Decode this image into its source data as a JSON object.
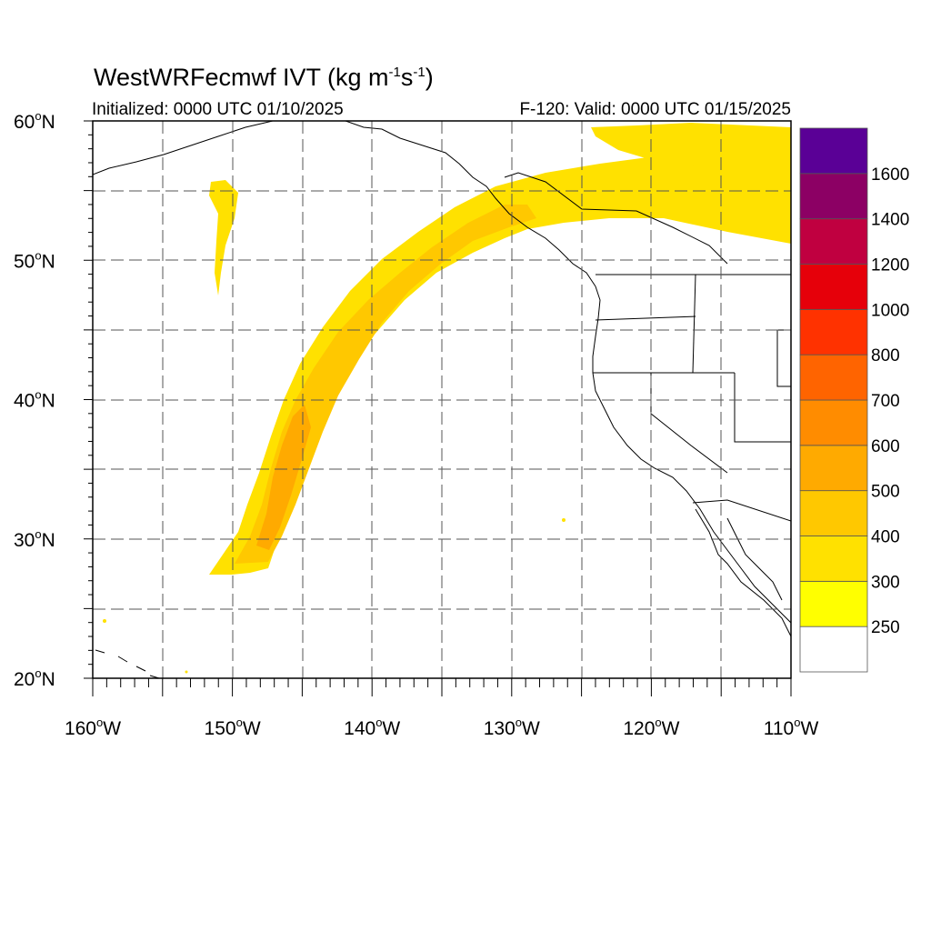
{
  "title": {
    "main": "WestWRFecmwf IVT (kg m",
    "sup1": "-1",
    "mid": "s",
    "sup2": "-1",
    "end": ")"
  },
  "subtitle_left": "Initialized: 0000 UTC 01/10/2025",
  "subtitle_right": "F-120: Valid: 0000 UTC 01/15/2025",
  "lat_labels": [
    "20",
    "30",
    "40",
    "50",
    "60"
  ],
  "lat_suffix": "N",
  "lon_labels": [
    "160",
    "150",
    "140",
    "130",
    "120",
    "110"
  ],
  "lon_suffix": "W",
  "colorbar": {
    "labels": [
      "250",
      "300",
      "400",
      "500",
      "600",
      "700",
      "800",
      "1000",
      "1200",
      "1400",
      "1600"
    ],
    "colors": [
      "#ffffff",
      "#ffff00",
      "#ffe100",
      "#ffc800",
      "#ffaa00",
      "#ff8c00",
      "#ff6400",
      "#ff3200",
      "#e6000a",
      "#c00040",
      "#8c0064",
      "#5a0096"
    ]
  }
}
